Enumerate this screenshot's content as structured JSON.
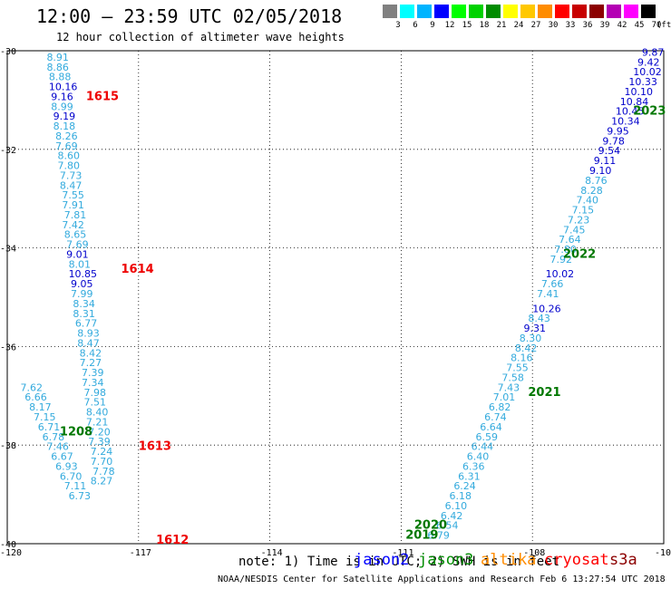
{
  "header": {
    "title": "12:00 — 23:59 UTC 02/05/2018",
    "subtitle": "12 hour collection of altimeter wave heights"
  },
  "legend": {
    "unit": "(ft)",
    "items": [
      {
        "label": "3",
        "color": "#808080"
      },
      {
        "label": "6",
        "color": "#00ffff"
      },
      {
        "label": "9",
        "color": "#00b4ff"
      },
      {
        "label": "12",
        "color": "#0000ff"
      },
      {
        "label": "15",
        "color": "#00ff00"
      },
      {
        "label": "18",
        "color": "#00d200"
      },
      {
        "label": "21",
        "color": "#008c00"
      },
      {
        "label": "24",
        "color": "#ffff00"
      },
      {
        "label": "27",
        "color": "#ffc800"
      },
      {
        "label": "30",
        "color": "#ff8c00"
      },
      {
        "label": "33",
        "color": "#ff0000"
      },
      {
        "label": "36",
        "color": "#c80000"
      },
      {
        "label": "39",
        "color": "#8c0000"
      },
      {
        "label": "42",
        "color": "#b400b4"
      },
      {
        "label": "45",
        "color": "#ff00ff"
      },
      {
        "label": "70",
        "color": "#000000"
      }
    ]
  },
  "footer": {
    "note": "note: 1) Time is in UTC; 2) SWH is in feet",
    "credit": "NOAA/NESDIS Center for Satellite Applications and Research   Feb  6 13:27:54 UTC 2018",
    "satellites": [
      {
        "name": "jason2",
        "color": "#0000ff"
      },
      {
        "name": "jason3",
        "color": "#008c00"
      },
      {
        "name": "altika",
        "color": "#ff8c00"
      },
      {
        "name": "cryosat",
        "color": "#ff0000"
      },
      {
        "name": "s3a",
        "color": "#8c0000"
      }
    ]
  },
  "colors": {
    "light": "#33aadd",
    "blue": "#0000cc",
    "red": "#ee0000",
    "green": "#007700"
  },
  "chart_data": {
    "type": "scatter",
    "x_ticks": [
      "-120",
      "-117",
      "-114",
      "-111",
      "-108",
      "-10"
    ],
    "y_ticks": [
      "-30",
      "-32",
      "-34",
      "-36",
      "-38",
      "-40"
    ],
    "xlim": [
      -120,
      -105
    ],
    "ylim": [
      -40,
      -30
    ],
    "grid": true,
    "track_labels": [
      {
        "text": "1615",
        "x": -118.2,
        "y": -31.0,
        "color": "red"
      },
      {
        "text": "1614",
        "x": -117.4,
        "y": -34.5,
        "color": "red"
      },
      {
        "text": "1613",
        "x": -117.0,
        "y": -38.1,
        "color": "red"
      },
      {
        "text": "1612",
        "x": -116.6,
        "y": -40.0,
        "color": "red"
      },
      {
        "text": "1208",
        "x": -118.8,
        "y": -37.8,
        "color": "green"
      },
      {
        "text": "2023",
        "x": -105.7,
        "y": -31.3,
        "color": "green"
      },
      {
        "text": "2022",
        "x": -107.3,
        "y": -34.2,
        "color": "green"
      },
      {
        "text": "2021",
        "x": -108.1,
        "y": -37.0,
        "color": "green"
      },
      {
        "text": "2020",
        "x": -110.7,
        "y": -39.7,
        "color": "green"
      },
      {
        "text": "2019",
        "x": -110.9,
        "y": -39.9,
        "color": "green"
      }
    ],
    "points": [
      {
        "v": "8.91",
        "x": -119.1,
        "y": -30.2,
        "c": "light"
      },
      {
        "v": "8.86",
        "x": -119.1,
        "y": -30.4,
        "c": "light"
      },
      {
        "v": "8.88",
        "x": -119.05,
        "y": -30.6,
        "c": "light"
      },
      {
        "v": "10.16",
        "x": -119.05,
        "y": -30.8,
        "c": "blue"
      },
      {
        "v": "9.16",
        "x": -119.0,
        "y": -31.0,
        "c": "blue"
      },
      {
        "v": "8.99",
        "x": -119.0,
        "y": -31.2,
        "c": "light"
      },
      {
        "v": "9.19",
        "x": -118.95,
        "y": -31.4,
        "c": "blue"
      },
      {
        "v": "8.18",
        "x": -118.95,
        "y": -31.6,
        "c": "light"
      },
      {
        "v": "8.26",
        "x": -118.9,
        "y": -31.8,
        "c": "light"
      },
      {
        "v": "7.69",
        "x": -118.9,
        "y": -32.0,
        "c": "light"
      },
      {
        "v": "8.60",
        "x": -118.85,
        "y": -32.2,
        "c": "light"
      },
      {
        "v": "7.80",
        "x": -118.85,
        "y": -32.4,
        "c": "light"
      },
      {
        "v": "7.73",
        "x": -118.8,
        "y": -32.6,
        "c": "light"
      },
      {
        "v": "8.47",
        "x": -118.8,
        "y": -32.8,
        "c": "light"
      },
      {
        "v": "7.55",
        "x": -118.75,
        "y": -33.0,
        "c": "light"
      },
      {
        "v": "7.91",
        "x": -118.75,
        "y": -33.2,
        "c": "light"
      },
      {
        "v": "7.81",
        "x": -118.7,
        "y": -33.4,
        "c": "light"
      },
      {
        "v": "7.42",
        "x": -118.75,
        "y": -33.6,
        "c": "light"
      },
      {
        "v": "8.65",
        "x": -118.7,
        "y": -33.8,
        "c": "light"
      },
      {
        "v": "7.69",
        "x": -118.65,
        "y": -34.0,
        "c": "light"
      },
      {
        "v": "9.01",
        "x": -118.65,
        "y": -34.2,
        "c": "blue"
      },
      {
        "v": "8.01",
        "x": -118.6,
        "y": -34.4,
        "c": "light"
      },
      {
        "v": "10.85",
        "x": -118.6,
        "y": -34.6,
        "c": "blue"
      },
      {
        "v": "9.05",
        "x": -118.55,
        "y": -34.8,
        "c": "blue"
      },
      {
        "v": "7.99",
        "x": -118.55,
        "y": -35.0,
        "c": "light"
      },
      {
        "v": "8.34",
        "x": -118.5,
        "y": -35.2,
        "c": "light"
      },
      {
        "v": "8.31",
        "x": -118.5,
        "y": -35.4,
        "c": "light"
      },
      {
        "v": "6.77",
        "x": -118.45,
        "y": -35.6,
        "c": "light"
      },
      {
        "v": "8.93",
        "x": -118.4,
        "y": -35.8,
        "c": "light"
      },
      {
        "v": "8.47",
        "x": -118.4,
        "y": -36.0,
        "c": "light"
      },
      {
        "v": "8.42",
        "x": -118.35,
        "y": -36.2,
        "c": "light"
      },
      {
        "v": "7.27",
        "x": -118.35,
        "y": -36.4,
        "c": "light"
      },
      {
        "v": "7.39",
        "x": -118.3,
        "y": -36.6,
        "c": "light"
      },
      {
        "v": "7.34",
        "x": -118.3,
        "y": -36.8,
        "c": "light"
      },
      {
        "v": "7.98",
        "x": -118.25,
        "y": -37.0,
        "c": "light"
      },
      {
        "v": "7.51",
        "x": -118.25,
        "y": -37.2,
        "c": "light"
      },
      {
        "v": "8.40",
        "x": -118.2,
        "y": -37.4,
        "c": "light"
      },
      {
        "v": "7.21",
        "x": -118.2,
        "y": -37.6,
        "c": "light"
      },
      {
        "v": "7.20",
        "x": -118.15,
        "y": -37.8,
        "c": "light"
      },
      {
        "v": "7.39",
        "x": -118.15,
        "y": -38.0,
        "c": "light"
      },
      {
        "v": "7.24",
        "x": -118.1,
        "y": -38.2,
        "c": "light"
      },
      {
        "v": "7.70",
        "x": -118.1,
        "y": -38.4,
        "c": "light"
      },
      {
        "v": "7.78",
        "x": -118.05,
        "y": -38.6,
        "c": "light"
      },
      {
        "v": "8.27",
        "x": -118.1,
        "y": -38.8,
        "c": "light"
      },
      {
        "v": "7.62",
        "x": -119.7,
        "y": -36.9,
        "c": "light"
      },
      {
        "v": "6.66",
        "x": -119.6,
        "y": -37.1,
        "c": "light"
      },
      {
        "v": "8.17",
        "x": -119.5,
        "y": -37.3,
        "c": "light"
      },
      {
        "v": "7.15",
        "x": -119.4,
        "y": -37.5,
        "c": "light"
      },
      {
        "v": "6.71",
        "x": -119.3,
        "y": -37.7,
        "c": "light"
      },
      {
        "v": "6.78",
        "x": -119.2,
        "y": -37.9,
        "c": "light"
      },
      {
        "v": "7.46",
        "x": -119.1,
        "y": -38.1,
        "c": "light"
      },
      {
        "v": "6.67",
        "x": -119.0,
        "y": -38.3,
        "c": "light"
      },
      {
        "v": "6.93",
        "x": -118.9,
        "y": -38.5,
        "c": "light"
      },
      {
        "v": "6.70",
        "x": -118.8,
        "y": -38.7,
        "c": "light"
      },
      {
        "v": "7.11",
        "x": -118.7,
        "y": -38.9,
        "c": "light"
      },
      {
        "v": "6.73",
        "x": -118.6,
        "y": -39.1,
        "c": "light"
      },
      {
        "v": "9.87",
        "x": -105.5,
        "y": -30.1,
        "c": "blue"
      },
      {
        "v": "9.42",
        "x": -105.6,
        "y": -30.3,
        "c": "blue"
      },
      {
        "v": "10.02",
        "x": -105.7,
        "y": -30.5,
        "c": "blue"
      },
      {
        "v": "10.33",
        "x": -105.8,
        "y": -30.7,
        "c": "blue"
      },
      {
        "v": "10.10",
        "x": -105.9,
        "y": -30.9,
        "c": "blue"
      },
      {
        "v": "10.84",
        "x": -106.0,
        "y": -31.1,
        "c": "blue"
      },
      {
        "v": "10.45",
        "x": -106.1,
        "y": -31.3,
        "c": "blue"
      },
      {
        "v": "10.34",
        "x": -106.2,
        "y": -31.5,
        "c": "blue"
      },
      {
        "v": "9.95",
        "x": -106.3,
        "y": -31.7,
        "c": "blue"
      },
      {
        "v": "9.78",
        "x": -106.4,
        "y": -31.9,
        "c": "blue"
      },
      {
        "v": "9.54",
        "x": -106.5,
        "y": -32.1,
        "c": "blue"
      },
      {
        "v": "9.11",
        "x": -106.6,
        "y": -32.3,
        "c": "blue"
      },
      {
        "v": "9.10",
        "x": -106.7,
        "y": -32.5,
        "c": "blue"
      },
      {
        "v": "8.76",
        "x": -106.8,
        "y": -32.7,
        "c": "light"
      },
      {
        "v": "8.28",
        "x": -106.9,
        "y": -32.9,
        "c": "light"
      },
      {
        "v": "7.40",
        "x": -107.0,
        "y": -33.1,
        "c": "light"
      },
      {
        "v": "7.15",
        "x": -107.1,
        "y": -33.3,
        "c": "light"
      },
      {
        "v": "7.23",
        "x": -107.2,
        "y": -33.5,
        "c": "light"
      },
      {
        "v": "7.45",
        "x": -107.3,
        "y": -33.7,
        "c": "light"
      },
      {
        "v": "7.64",
        "x": -107.4,
        "y": -33.9,
        "c": "light"
      },
      {
        "v": "7.80",
        "x": -107.5,
        "y": -34.1,
        "c": "light"
      },
      {
        "v": "7.92",
        "x": -107.6,
        "y": -34.3,
        "c": "light"
      },
      {
        "v": "10.02",
        "x": -107.7,
        "y": -34.6,
        "c": "blue"
      },
      {
        "v": "7.66",
        "x": -107.8,
        "y": -34.8,
        "c": "light"
      },
      {
        "v": "7.41",
        "x": -107.9,
        "y": -35.0,
        "c": "light"
      },
      {
        "v": "10.26",
        "x": -108.0,
        "y": -35.3,
        "c": "blue"
      },
      {
        "v": "8.43",
        "x": -108.1,
        "y": -35.5,
        "c": "light"
      },
      {
        "v": "9.31",
        "x": -108.2,
        "y": -35.7,
        "c": "blue"
      },
      {
        "v": "8.30",
        "x": -108.3,
        "y": -35.9,
        "c": "light"
      },
      {
        "v": "8.42",
        "x": -108.4,
        "y": -36.1,
        "c": "light"
      },
      {
        "v": "8.16",
        "x": -108.5,
        "y": -36.3,
        "c": "light"
      },
      {
        "v": "7.55",
        "x": -108.6,
        "y": -36.5,
        "c": "light"
      },
      {
        "v": "7.58",
        "x": -108.7,
        "y": -36.7,
        "c": "light"
      },
      {
        "v": "7.43",
        "x": -108.8,
        "y": -36.9,
        "c": "light"
      },
      {
        "v": "7.01",
        "x": -108.9,
        "y": -37.1,
        "c": "light"
      },
      {
        "v": "6.82",
        "x": -109.0,
        "y": -37.3,
        "c": "light"
      },
      {
        "v": "6.74",
        "x": -109.1,
        "y": -37.5,
        "c": "light"
      },
      {
        "v": "6.64",
        "x": -109.2,
        "y": -37.7,
        "c": "light"
      },
      {
        "v": "6.59",
        "x": -109.3,
        "y": -37.9,
        "c": "light"
      },
      {
        "v": "6.44",
        "x": -109.4,
        "y": -38.1,
        "c": "light"
      },
      {
        "v": "6.40",
        "x": -109.5,
        "y": -38.3,
        "c": "light"
      },
      {
        "v": "6.36",
        "x": -109.6,
        "y": -38.5,
        "c": "light"
      },
      {
        "v": "6.31",
        "x": -109.7,
        "y": -38.7,
        "c": "light"
      },
      {
        "v": "6.24",
        "x": -109.8,
        "y": -38.9,
        "c": "light"
      },
      {
        "v": "6.18",
        "x": -109.9,
        "y": -39.1,
        "c": "light"
      },
      {
        "v": "6.10",
        "x": -110.0,
        "y": -39.3,
        "c": "light"
      },
      {
        "v": "6.42",
        "x": -110.1,
        "y": -39.5,
        "c": "light"
      },
      {
        "v": "6.54",
        "x": -110.2,
        "y": -39.7,
        "c": "light"
      },
      {
        "v": "6.79",
        "x": -110.4,
        "y": -39.9,
        "c": "light"
      }
    ]
  }
}
